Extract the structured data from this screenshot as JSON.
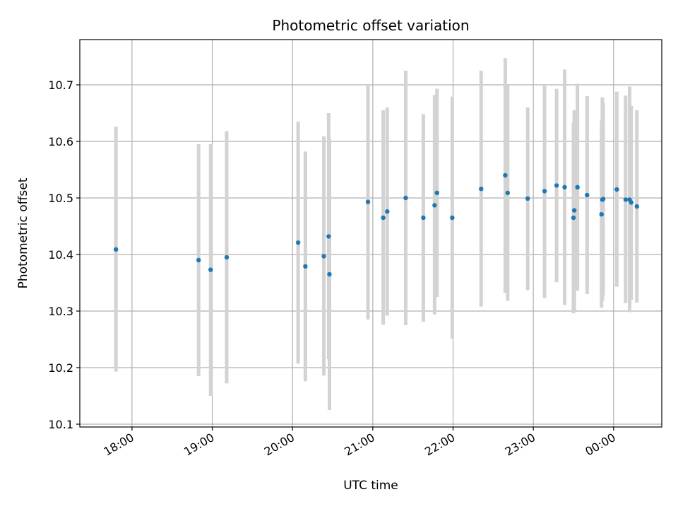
{
  "chart_data": {
    "type": "scatter",
    "title": "Photometric offset variation",
    "xlabel": "UTC time",
    "ylabel": "Photometric offset",
    "x_unit": "hours (UTC, values past 24 are after midnight)",
    "xlim": [
      17.35,
      24.6
    ],
    "ylim": [
      10.095,
      10.78
    ],
    "x_ticks": [
      {
        "value": 18,
        "label": "18:00"
      },
      {
        "value": 19,
        "label": "19:00"
      },
      {
        "value": 20,
        "label": "20:00"
      },
      {
        "value": 21,
        "label": "21:00"
      },
      {
        "value": 22,
        "label": "22:00"
      },
      {
        "value": 23,
        "label": "23:00"
      },
      {
        "value": 24,
        "label": "00:00"
      }
    ],
    "y_ticks": [
      {
        "value": 10.1,
        "label": "10.1"
      },
      {
        "value": 10.2,
        "label": "10.2"
      },
      {
        "value": 10.3,
        "label": "10.3"
      },
      {
        "value": 10.4,
        "label": "10.4"
      },
      {
        "value": 10.5,
        "label": "10.5"
      },
      {
        "value": 10.6,
        "label": "10.6"
      },
      {
        "value": 10.7,
        "label": "10.7"
      }
    ],
    "grid": true,
    "marker_color": "#1f77b4",
    "errorbar_color": "#d3d3d3",
    "points": [
      {
        "x": 17.8,
        "y": 10.409,
        "ylo": 10.193,
        "yhi": 10.626
      },
      {
        "x": 18.83,
        "y": 10.39,
        "ylo": 10.185,
        "yhi": 10.595
      },
      {
        "x": 18.98,
        "y": 10.373,
        "ylo": 10.15,
        "yhi": 10.595
      },
      {
        "x": 19.18,
        "y": 10.395,
        "ylo": 10.172,
        "yhi": 10.618
      },
      {
        "x": 20.07,
        "y": 10.421,
        "ylo": 10.207,
        "yhi": 10.635
      },
      {
        "x": 20.16,
        "y": 10.379,
        "ylo": 10.176,
        "yhi": 10.582
      },
      {
        "x": 20.39,
        "y": 10.397,
        "ylo": 10.186,
        "yhi": 10.609
      },
      {
        "x": 20.45,
        "y": 10.432,
        "ylo": 10.215,
        "yhi": 10.65
      },
      {
        "x": 20.46,
        "y": 10.365,
        "ylo": 10.125,
        "yhi": 10.605
      },
      {
        "x": 20.94,
        "y": 10.493,
        "ylo": 10.285,
        "yhi": 10.7
      },
      {
        "x": 21.13,
        "y": 10.465,
        "ylo": 10.276,
        "yhi": 10.655
      },
      {
        "x": 21.18,
        "y": 10.476,
        "ylo": 10.292,
        "yhi": 10.66
      },
      {
        "x": 21.41,
        "y": 10.5,
        "ylo": 10.275,
        "yhi": 10.725
      },
      {
        "x": 21.63,
        "y": 10.465,
        "ylo": 10.281,
        "yhi": 10.648
      },
      {
        "x": 21.77,
        "y": 10.487,
        "ylo": 10.294,
        "yhi": 10.682
      },
      {
        "x": 21.8,
        "y": 10.509,
        "ylo": 10.325,
        "yhi": 10.693
      },
      {
        "x": 21.99,
        "y": 10.465,
        "ylo": 10.251,
        "yhi": 10.679
      },
      {
        "x": 22.35,
        "y": 10.516,
        "ylo": 10.308,
        "yhi": 10.725
      },
      {
        "x": 22.65,
        "y": 10.54,
        "ylo": 10.332,
        "yhi": 10.747
      },
      {
        "x": 22.68,
        "y": 10.509,
        "ylo": 10.318,
        "yhi": 10.7
      },
      {
        "x": 22.93,
        "y": 10.499,
        "ylo": 10.337,
        "yhi": 10.66
      },
      {
        "x": 23.14,
        "y": 10.512,
        "ylo": 10.323,
        "yhi": 10.7
      },
      {
        "x": 23.29,
        "y": 10.522,
        "ylo": 10.351,
        "yhi": 10.693
      },
      {
        "x": 23.39,
        "y": 10.519,
        "ylo": 10.311,
        "yhi": 10.727
      },
      {
        "x": 23.5,
        "y": 10.465,
        "ylo": 10.296,
        "yhi": 10.634
      },
      {
        "x": 23.51,
        "y": 10.478,
        "ylo": 10.3,
        "yhi": 10.655
      },
      {
        "x": 23.55,
        "y": 10.519,
        "ylo": 10.336,
        "yhi": 10.702
      },
      {
        "x": 23.67,
        "y": 10.505,
        "ylo": 10.33,
        "yhi": 10.68
      },
      {
        "x": 23.85,
        "y": 10.471,
        "ylo": 10.306,
        "yhi": 10.637
      },
      {
        "x": 23.86,
        "y": 10.497,
        "ylo": 10.318,
        "yhi": 10.678
      },
      {
        "x": 23.87,
        "y": 10.498,
        "ylo": 10.328,
        "yhi": 10.668
      },
      {
        "x": 24.04,
        "y": 10.515,
        "ylo": 10.343,
        "yhi": 10.688
      },
      {
        "x": 24.15,
        "y": 10.497,
        "ylo": 10.314,
        "yhi": 10.681
      },
      {
        "x": 24.2,
        "y": 10.497,
        "ylo": 10.298,
        "yhi": 10.697
      },
      {
        "x": 24.22,
        "y": 10.492,
        "ylo": 10.32,
        "yhi": 10.663
      },
      {
        "x": 24.29,
        "y": 10.485,
        "ylo": 10.315,
        "yhi": 10.655
      }
    ]
  }
}
